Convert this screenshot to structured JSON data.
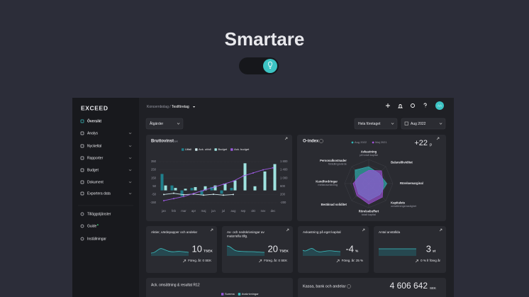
{
  "hero": {
    "title": "Smartare"
  },
  "app": {
    "logo": "EXCEED",
    "breadcrumb": {
      "parent": "Koncernbolag",
      "current": "Testföretag"
    },
    "avatar": "AA",
    "menu": [
      "Översikt",
      "Analys",
      "Nyckeltal",
      "Rapporter",
      "Budget",
      "Dokument",
      "Exportera data"
    ],
    "menu_bottom": [
      "Tilläggstjänster",
      "Guide",
      "Inställningar"
    ],
    "filters": {
      "actions": "Åtgärder",
      "scope": "Hela företaget",
      "period": "Aug 2022"
    }
  },
  "chart_data": [
    {
      "type": "bar",
      "title": "Bruttovinst",
      "unit": "Tsek",
      "categories": [
        "jan",
        "feb",
        "mar",
        "apr",
        "maj",
        "jun",
        "jul",
        "aug",
        "sep",
        "okt",
        "nov",
        "dec"
      ],
      "series": [
        {
          "name": "Utfall",
          "color": "#1f7f8c",
          "values": [
            200,
            60,
            -70,
            30,
            -50,
            40,
            -40,
            30,
            null,
            null,
            null,
            null
          ]
        },
        {
          "name": "Ack. utfall",
          "color": "#cfe9ec",
          "axis": "y2",
          "values": [
            200,
            260,
            190,
            220,
            170,
            210,
            170,
            200,
            null,
            null,
            null,
            null
          ]
        },
        {
          "name": "Budget",
          "color": "#9fe3e0",
          "values": [
            60,
            30,
            20,
            40,
            50,
            60,
            80,
            120,
            330,
            50,
            230,
            320
          ]
        },
        {
          "name": "Ack. budget",
          "color": "#9b59e0",
          "axis": "y2",
          "values": [
            -100,
            0,
            100,
            250,
            400,
            550,
            700,
            850,
            1100,
            1250,
            1400,
            1500
          ]
        }
      ],
      "ylim": [
        -150,
        350
      ],
      "yticks": [
        -150,
        -50,
        50,
        150,
        250,
        350
      ],
      "y2lim": [
        -200,
        1800
      ],
      "y2ticks": [
        -200,
        200,
        600,
        {
          "value": 1000,
          "label": "1 000"
        },
        {
          "value": 1400,
          "label": "1 400"
        },
        {
          "value": 1800,
          "label": "1 800"
        }
      ],
      "grid": true
    },
    {
      "type": "radar",
      "title": "O-index",
      "score": "+22",
      "score_unit": "p",
      "axes": [
        {
          "label": "Avkastning",
          "detail": "på totalt kapital"
        },
        {
          "label": "Balanslikviditet"
        },
        {
          "label": "Rörelsemarginal"
        },
        {
          "label": "Kapitalets",
          "detail": "omsättningshastighet"
        },
        {
          "label": "Rörelsebuffert",
          "detail": "totalt kapital"
        },
        {
          "label": "Beräknad soliditet"
        },
        {
          "label": "Kundfordringar",
          "detail": "mellanavräkning"
        },
        {
          "label": "Personalkostnader",
          "detail": "förädlingsvärde"
        }
      ],
      "series": [
        {
          "name": "Aug 2022",
          "color": "#2fb5b5",
          "values": [
            70,
            60,
            75,
            65,
            70,
            60,
            55,
            80
          ]
        },
        {
          "name": "Maj 2021",
          "color": "#a050d8",
          "values": [
            55,
            75,
            60,
            80,
            85,
            70,
            65,
            50
          ]
        }
      ],
      "rlim": [
        0,
        100
      ]
    }
  ],
  "kpis": [
    {
      "title": "Aktier, värdepapper och andelar",
      "value": 10,
      "unit": "TSEK",
      "previous": "Föreg. år: 0 SEK"
    },
    {
      "title": "Av- och nedskrivningar av materiella tillg.",
      "value": 20,
      "unit": "TSEK",
      "previous": "Föreg. år: 0 SEK"
    },
    {
      "title": "Avkastning på eget kapital",
      "value": -4,
      "unit": "%",
      "previous": "Föreg. år: 25 %"
    },
    {
      "title": "Antal anställda",
      "value": 3,
      "unit": "st",
      "previous": "0 % fr föreg år"
    }
  ],
  "revenue_card": {
    "title": "Ack. omsättning & resultat R12",
    "legend": [
      "Summa",
      "Avskrivningar"
    ]
  },
  "cash_card": {
    "title": "Kassa, bank och andelar",
    "value": "4 606 642",
    "unit": "SEK"
  }
}
